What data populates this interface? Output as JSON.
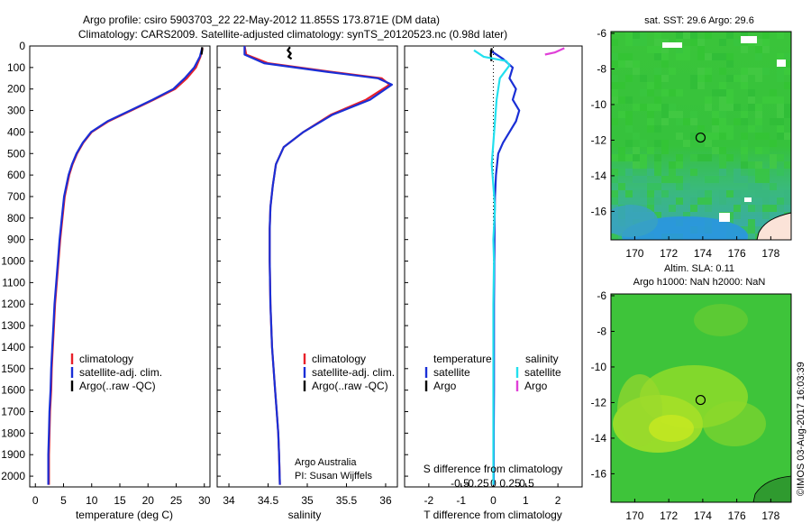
{
  "header": {
    "line1": "Argo profile: csiro 5903703_22 22-May-2012 11.855S 173.871E (DM data)",
    "line2": "Climatology: CARS2009. Satellite-adjusted climatology: synTS_20120523.nc (0.98d later)"
  },
  "depth_ticks": [
    "0",
    "100",
    "200",
    "300",
    "400",
    "500",
    "600",
    "700",
    "800",
    "900",
    "1000",
    "1100",
    "1200",
    "1300",
    "1400",
    "1500",
    "1600",
    "1700",
    "1800",
    "1900",
    "2000"
  ],
  "colors": {
    "climatology": "#e8202a",
    "satellite": "#1a2fd6",
    "argo": "#000000",
    "salinity_satellite": "#22e0ee",
    "salinity_argo": "#e040d8",
    "map_green": "#33cc33",
    "map_blue": "#3399ff",
    "map_yellow": "#c8e820"
  },
  "panels": {
    "temperature": {
      "xlabel": "temperature (deg C)",
      "xlim": [
        -1,
        31
      ],
      "ticks": [
        "0",
        "5",
        "10",
        "15",
        "20",
        "25",
        "30"
      ],
      "legend": [
        "climatology",
        "satellite-adj. clim.",
        "Argo(..raw -QC)"
      ]
    },
    "salinity": {
      "xlabel": "salinity",
      "xlim": [
        33.85,
        36.15
      ],
      "ticks": [
        "34",
        "34.5",
        "35",
        "35.5",
        "36"
      ],
      "legend": [
        "climatology",
        "satellite-adj. clim.",
        "Argo(..raw -QC)"
      ],
      "credit1": "Argo Australia",
      "credit2": "PI: Susan Wijffels"
    },
    "difference": {
      "xlabel": "T difference from climatology",
      "xlabel_top": "S difference from climatology",
      "xlim": [
        -2.75,
        2.75
      ],
      "ticks": [
        "-2",
        "-1",
        "0",
        "1",
        "2"
      ],
      "top_ticks": [
        "-0.5",
        "-0.25",
        "0",
        "0.25",
        "0.5"
      ],
      "legend_temperature_title": "temperature",
      "legend_salinity_title": "salinity",
      "legend_items": [
        "satellite",
        "Argo",
        "satellite",
        "Argo"
      ]
    }
  },
  "maps": {
    "sst": {
      "title": "sat. SST: 29.6  Argo: 29.6",
      "lon_ticks": [
        "170",
        "172",
        "174",
        "176",
        "178"
      ],
      "lat_ticks": [
        "-6",
        "-8",
        "-10",
        "-12",
        "-14",
        "-16"
      ]
    },
    "sla": {
      "title1": "Altim. SLA: 0.11",
      "title2": "Argo h1000: NaN h2000: NaN",
      "lon_ticks": [
        "170",
        "172",
        "174",
        "176",
        "178"
      ],
      "lat_ticks": [
        "-6",
        "-8",
        "-10",
        "-12",
        "-14",
        "-16"
      ]
    },
    "float_position": {
      "lon": 173.871,
      "lat": -11.855
    },
    "stamp": "©IMOS 03-Aug-2017 16:03:39"
  },
  "chart_data": [
    {
      "type": "line",
      "title": "",
      "xlabel": "temperature (deg C)",
      "ylabel": "",
      "xlim": [
        -1,
        31
      ],
      "ylim": [
        2050,
        0
      ],
      "series": [
        {
          "name": "climatology",
          "x": [
            29.7,
            29.3,
            28.5,
            26.9,
            24.8,
            21.0,
            17.0,
            13.0,
            10.0,
            8.5,
            7.4,
            6.6,
            6.0,
            5.6,
            5.2,
            4.8,
            4.4,
            4.1,
            3.8,
            3.5,
            3.3,
            3.1,
            2.9,
            2.8,
            2.6,
            2.5,
            2.4,
            2.4
          ],
          "y": [
            10,
            50,
            100,
            150,
            200,
            250,
            300,
            350,
            400,
            450,
            500,
            550,
            600,
            650,
            700,
            800,
            900,
            1000,
            1100,
            1200,
            1300,
            1400,
            1500,
            1600,
            1700,
            1800,
            1900,
            2040
          ]
        },
        {
          "name": "satellite-adj. clim.",
          "x": [
            29.6,
            29.2,
            28.2,
            26.5,
            24.5,
            20.8,
            16.8,
            12.8,
            9.9,
            8.4,
            7.3,
            6.5,
            5.9,
            5.5,
            5.1,
            4.7,
            4.3,
            4.0,
            3.7,
            3.4,
            3.2,
            3.0,
            2.8,
            2.7,
            2.5,
            2.4,
            2.3,
            2.3
          ],
          "y": [
            10,
            50,
            100,
            150,
            200,
            250,
            300,
            350,
            400,
            450,
            500,
            550,
            600,
            650,
            700,
            800,
            900,
            1000,
            1100,
            1200,
            1300,
            1400,
            1500,
            1600,
            1700,
            1800,
            1900,
            2040
          ]
        },
        {
          "name": "Argo(..raw -QC)",
          "x": [
            29.6,
            29.6,
            29.5
          ],
          "y": [
            5,
            20,
            40
          ]
        }
      ]
    },
    {
      "type": "line",
      "title": "",
      "xlabel": "salinity",
      "ylabel": "",
      "xlim": [
        33.85,
        36.15
      ],
      "ylim": [
        2050,
        0
      ],
      "series": [
        {
          "name": "climatology",
          "x": [
            34.2,
            34.22,
            34.5,
            35.3,
            35.95,
            36.05,
            35.75,
            35.3,
            34.95,
            34.7,
            34.6,
            34.56,
            34.53,
            34.52,
            34.52,
            34.53,
            34.55,
            34.57,
            34.59,
            34.61,
            34.63,
            34.64,
            34.65
          ],
          "y": [
            0,
            40,
            80,
            120,
            150,
            180,
            250,
            320,
            400,
            470,
            550,
            650,
            750,
            850,
            1000,
            1200,
            1400,
            1500,
            1600,
            1700,
            1800,
            1900,
            2040
          ]
        },
        {
          "name": "satellite-adj. clim.",
          "x": [
            34.2,
            34.2,
            34.45,
            35.25,
            35.9,
            36.08,
            35.8,
            35.32,
            34.95,
            34.7,
            34.6,
            34.56,
            34.53,
            34.52,
            34.52,
            34.53,
            34.55,
            34.57,
            34.59,
            34.61,
            34.63,
            34.64,
            34.65
          ],
          "y": [
            0,
            40,
            80,
            120,
            150,
            180,
            250,
            320,
            400,
            470,
            550,
            650,
            750,
            850,
            1000,
            1200,
            1400,
            1500,
            1600,
            1700,
            1800,
            1900,
            2040
          ]
        },
        {
          "name": "Argo(..raw -QC)",
          "x": [
            34.78,
            34.75,
            34.79,
            34.76,
            34.8
          ],
          "y": [
            5,
            20,
            35,
            50,
            60
          ]
        }
      ]
    },
    {
      "type": "line",
      "title": "",
      "xlabel": "T difference from climatology",
      "xlabel_top": "S difference from climatology",
      "ylabel": "",
      "xlim": [
        -2.75,
        2.75
      ],
      "ylim": [
        2050,
        0
      ],
      "series": [
        {
          "name": "temperature satellite",
          "x": [
            -0.1,
            0.3,
            0.6,
            0.5,
            0.7,
            0.6,
            0.8,
            0.7,
            0.5,
            0.3,
            0.15,
            0.08,
            0.05,
            0.04,
            0.03,
            0.02,
            0.02,
            0.02,
            0.01,
            0.01
          ],
          "y": [
            20,
            60,
            100,
            150,
            200,
            250,
            300,
            350,
            400,
            450,
            500,
            600,
            700,
            800,
            1000,
            1200,
            1400,
            1600,
            1800,
            2040
          ]
        },
        {
          "name": "temperature Argo",
          "x": [
            -0.05,
            -0.08,
            -0.06
          ],
          "y": [
            10,
            40,
            70
          ]
        },
        {
          "name": "salinity satellite",
          "x": [
            -0.6,
            -0.3,
            0.4,
            0.5,
            0.2,
            0.1,
            0.05,
            0.0,
            -0.05,
            0.0,
            0.05,
            0.0,
            0.02,
            0.0,
            0.0,
            0.0,
            0.0,
            0.0
          ],
          "y": [
            20,
            50,
            70,
            90,
            150,
            250,
            350,
            450,
            550,
            650,
            750,
            900,
            1000,
            1200,
            1400,
            1600,
            1800,
            2040
          ]
        },
        {
          "name": "salinity Argo",
          "x": [
            1.6,
            1.9,
            2.2
          ],
          "y": [
            40,
            30,
            10
          ]
        }
      ]
    }
  ]
}
